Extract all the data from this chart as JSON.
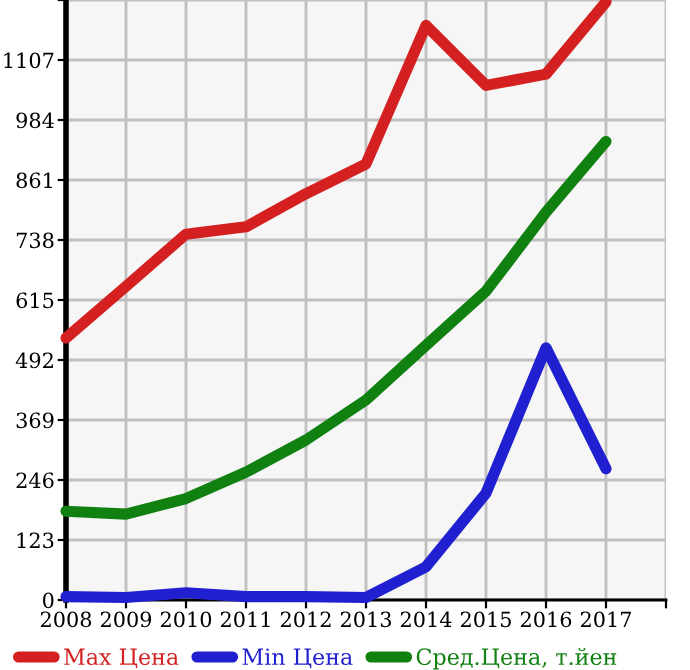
{
  "chart_data": {
    "type": "line",
    "x": [
      2008,
      2009,
      2010,
      2011,
      2012,
      2013,
      2014,
      2015,
      2016,
      2017
    ],
    "series": [
      {
        "name": "Max Цена",
        "color": "#d42020",
        "values": [
          537,
          643,
          750,
          765,
          833,
          894,
          1178,
          1055,
          1078,
          1226
        ]
      },
      {
        "name": "Min Цена",
        "color": "#2020d0",
        "values": [
          7,
          5,
          15,
          7,
          7,
          5,
          68,
          219,
          517,
          269
        ]
      },
      {
        "name": "Сред.Цена, т.йен",
        "color": "#108010",
        "values": [
          182,
          176,
          208,
          262,
          328,
          410,
          522,
          633,
          795,
          940
        ]
      }
    ],
    "xlim": [
      2008,
      2018
    ],
    "xticks": [
      2008,
      2009,
      2010,
      2011,
      2012,
      2013,
      2014,
      2015,
      2016,
      2017,
      {
        "value": 2018,
        "label": null
      }
    ],
    "ylim": [
      0,
      1230
    ],
    "yticks": [
      0,
      123,
      246,
      369,
      492,
      615,
      738,
      861,
      984,
      1107,
      {
        "value": 1230,
        "label": null
      }
    ],
    "grid": true,
    "legend": "bottom",
    "marker": "none",
    "line_style": "solid"
  }
}
